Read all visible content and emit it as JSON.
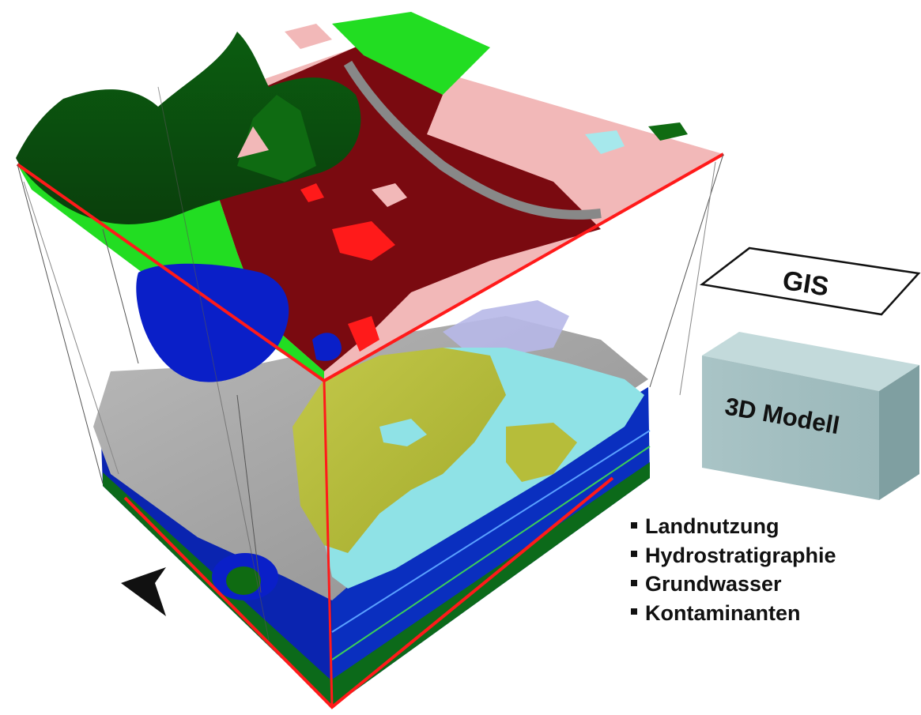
{
  "labels": {
    "gis": "GIS",
    "model": "3D Modell"
  },
  "bullets": [
    "Landnutzung",
    "Hydrostratigraphie",
    "Grundwasser",
    "Kontaminanten"
  ],
  "colors": {
    "frame_red": "#ff1a1a",
    "forest_dark": "#0f6b12",
    "forest_light": "#22dd22",
    "urban_maroon": "#7a0a10",
    "farmland_pink": "#f2b8b8",
    "water_blue": "#0a1fc8",
    "geology_grey": "#a8a8a8",
    "aquifer_olive": "#b6bd3a",
    "aquifer_cyan": "#8fe2e6",
    "model_box": "#a7c2c4"
  }
}
